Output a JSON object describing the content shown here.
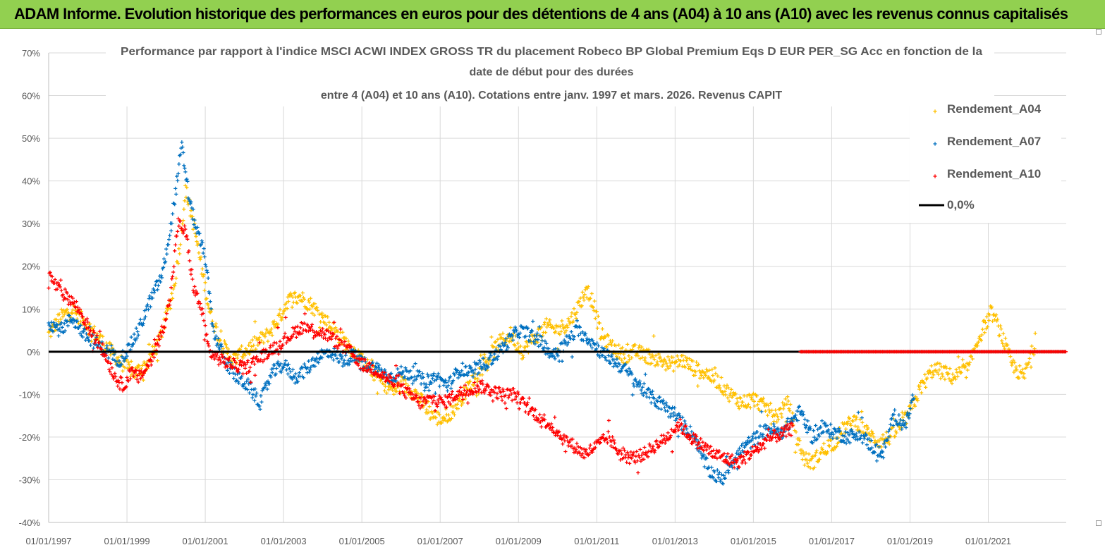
{
  "banner": {
    "title": "ADAM Informe. Evolution historique des performances en euros pour des détentions de 4 ans (A04) à 10 ans (A10) avec les revenus connus capitalisés"
  },
  "chart_data": {
    "type": "scatter",
    "title_lines": [
      "Performance par rapport à l'indice MSCI ACWI INDEX GROSS TR  du placement Robeco BP Global Premium Eqs D EUR PER_SG Acc en fonction de la",
      "date de début pour des durées",
      "entre 4 (A04) et 10 ans (A10). Cotations entre janv. 1997 et mars. 2026. Revenus CAPIT"
    ],
    "xlabel": "",
    "ylabel": "",
    "x_range": [
      1997.0,
      2022.99
    ],
    "ylim": [
      -40,
      70
    ],
    "y_ticks": [
      70,
      60,
      50,
      40,
      30,
      20,
      10,
      0,
      -10,
      -20,
      -30,
      -40
    ],
    "y_tick_labels": [
      "70%",
      "60%",
      "50%",
      "40%",
      "30%",
      "20%",
      "10%",
      "0%",
      "-10%",
      "-20%",
      "-30%",
      "-40%"
    ],
    "x_ticks": [
      1997,
      1999,
      2001,
      2003,
      2005,
      2007,
      2009,
      2011,
      2013,
      2015,
      2017,
      2019,
      2021
    ],
    "x_tick_labels": [
      "01/01/1997",
      "01/01/1999",
      "01/01/2001",
      "01/01/2003",
      "01/01/2005",
      "01/01/2007",
      "01/01/2009",
      "01/01/2011",
      "01/01/2013",
      "01/01/2015",
      "01/01/2017",
      "01/01/2019",
      "01/01/2021"
    ],
    "grid": true,
    "legend_position": "top-right",
    "legend": [
      "Rendement_A04",
      "Rendement_A07",
      "Rendement_A10",
      "0,0%"
    ],
    "series": [
      {
        "name": "Rendement_A04",
        "color": "#ffc000",
        "x": [
          1997.0,
          1997.3,
          1997.6,
          1998.0,
          1998.3,
          1998.6,
          1998.9,
          1999.2,
          1999.5,
          1999.8,
          2000.0,
          2000.2,
          2000.35,
          2000.5,
          2000.7,
          2000.9,
          2001.1,
          2001.4,
          2001.7,
          2002.0,
          2002.3,
          2002.6,
          2002.9,
          2003.1,
          2003.4,
          2003.7,
          2004.0,
          2004.3,
          2004.6,
          2004.9,
          2005.2,
          2005.5,
          2005.8,
          2006.1,
          2006.4,
          2006.7,
          2007.0,
          2007.3,
          2007.6,
          2007.9,
          2008.2,
          2008.5,
          2008.8,
          2009.1,
          2009.4,
          2009.7,
          2010.0,
          2010.3,
          2010.5,
          2010.7,
          2010.9,
          2011.1,
          2011.4,
          2011.7,
          2012.0,
          2012.3,
          2012.6,
          2012.9,
          2013.2,
          2013.5,
          2013.8,
          2014.1,
          2014.4,
          2014.7,
          2015.0,
          2015.3,
          2015.6,
          2015.9,
          2016.1,
          2016.3,
          2016.5,
          2016.7,
          2016.9,
          2017.1,
          2017.3,
          2017.6,
          2017.9,
          2018.2,
          2018.5,
          2018.8,
          2019.0,
          2019.3,
          2019.6,
          2019.9,
          2020.1,
          2020.3,
          2020.5,
          2020.7,
          2020.9,
          2021.1,
          2021.3,
          2021.6,
          2021.9,
          2022.2
        ],
        "y": [
          4,
          8,
          10,
          6,
          3,
          0,
          -3,
          -5,
          -3,
          2,
          8,
          15,
          25,
          38,
          30,
          20,
          10,
          2,
          -2,
          0,
          2,
          4,
          8,
          12,
          13,
          11,
          8,
          5,
          2,
          -1,
          -4,
          -7,
          -9,
          -8,
          -10,
          -14,
          -16,
          -14,
          -10,
          -6,
          -2,
          2,
          4,
          0,
          3,
          6,
          5,
          7,
          10,
          14,
          12,
          4,
          1,
          -1,
          0,
          -1,
          -2,
          -3,
          -2,
          -4,
          -5,
          -7,
          -10,
          -12,
          -11,
          -13,
          -15,
          -12,
          -20,
          -25,
          -26,
          -24,
          -22,
          -21,
          -18,
          -16,
          -19,
          -21,
          -20,
          -17,
          -14,
          -8,
          -4,
          -5,
          -6,
          -5,
          -4,
          2,
          6,
          9,
          5,
          -3,
          -6,
          2
        ],
        "spread": 1.8
      },
      {
        "name": "Rendement_A07",
        "color": "#0070c0",
        "x": [
          1997.0,
          1997.3,
          1997.6,
          1997.9,
          1998.2,
          1998.5,
          1998.8,
          1999.0,
          1999.3,
          1999.6,
          1999.9,
          2000.1,
          2000.25,
          2000.4,
          2000.6,
          2000.8,
          2001.0,
          2001.2,
          2001.5,
          2001.8,
          2002.1,
          2002.4,
          2002.7,
          2003.0,
          2003.3,
          2003.6,
          2003.9,
          2004.2,
          2004.5,
          2004.8,
          2005.1,
          2005.4,
          2005.7,
          2006.0,
          2006.3,
          2006.6,
          2006.9,
          2007.2,
          2007.5,
          2007.8,
          2008.1,
          2008.4,
          2008.7,
          2009.0,
          2009.3,
          2009.6,
          2009.9,
          2010.2,
          2010.5,
          2010.8,
          2011.1,
          2011.4,
          2011.7,
          2012.0,
          2012.3,
          2012.6,
          2012.9,
          2013.1,
          2013.3,
          2013.5,
          2013.7,
          2013.9,
          2014.2,
          2014.5,
          2014.8,
          2015.1,
          2015.4,
          2015.7,
          2015.9,
          2016.2,
          2016.5,
          2016.8,
          2017.1,
          2017.4,
          2017.7,
          2018.0,
          2018.3,
          2018.6,
          2018.9,
          2019.1
        ],
        "y": [
          7,
          5,
          8,
          4,
          2,
          0,
          -2,
          0,
          5,
          12,
          18,
          28,
          38,
          48,
          35,
          28,
          22,
          5,
          -2,
          -6,
          -8,
          -12,
          -5,
          -3,
          -6,
          -4,
          -1,
          0,
          -2,
          -1,
          -3,
          -4,
          -6,
          -5,
          -5,
          -7,
          -6,
          -8,
          -4,
          -5,
          -3,
          -1,
          2,
          5,
          4,
          2,
          -1,
          2,
          5,
          3,
          0,
          -2,
          -4,
          -7,
          -10,
          -12,
          -14,
          -16,
          -18,
          -20,
          -25,
          -28,
          -30,
          -25,
          -22,
          -20,
          -18,
          -19,
          -17,
          -14,
          -20,
          -18,
          -19,
          -20,
          -19,
          -22,
          -24,
          -15,
          -17,
          -10
        ],
        "spread": 1.6
      },
      {
        "name": "Rendement_A10",
        "color": "#ff0000",
        "x": [
          1997.0,
          1997.3,
          1997.6,
          1997.9,
          1998.1,
          1998.3,
          1998.5,
          1998.7,
          1998.9,
          1999.1,
          1999.3,
          1999.5,
          1999.7,
          1999.9,
          2000.1,
          2000.3,
          2000.5,
          2000.7,
          2000.9,
          2001.1,
          2001.4,
          2001.7,
          2002.0,
          2002.3,
          2002.6,
          2002.9,
          2003.2,
          2003.5,
          2003.8,
          2004.1,
          2004.4,
          2004.7,
          2005.0,
          2005.3,
          2005.6,
          2005.9,
          2006.2,
          2006.5,
          2006.8,
          2007.1,
          2007.4,
          2007.7,
          2008.0,
          2008.3,
          2008.6,
          2008.9,
          2009.2,
          2009.5,
          2009.8,
          2010.1,
          2010.4,
          2010.7,
          2011.0,
          2011.3,
          2011.6,
          2011.9,
          2012.2,
          2012.5,
          2012.8,
          2013.1,
          2013.4,
          2013.7,
          2014.0,
          2014.3,
          2014.6,
          2014.9,
          2015.2,
          2015.5,
          2015.8,
          2016.0
        ],
        "y": [
          18,
          14,
          12,
          8,
          4,
          2,
          -2,
          -6,
          -8,
          -5,
          -6,
          -4,
          0,
          5,
          12,
          30,
          28,
          15,
          10,
          0,
          -2,
          -3,
          -4,
          -2,
          0,
          2,
          4,
          6,
          5,
          4,
          2,
          0,
          -3,
          -4,
          -6,
          -8,
          -10,
          -12,
          -11,
          -12,
          -10,
          -9,
          -8,
          -9,
          -10,
          -10,
          -13,
          -15,
          -17,
          -20,
          -22,
          -24,
          -22,
          -20,
          -24,
          -25,
          -24,
          -22,
          -20,
          -17,
          -20,
          -22,
          -24,
          -25,
          -26,
          -24,
          -22,
          -20,
          -19,
          -18
        ],
        "spread": 1.5
      }
    ],
    "zero_series": {
      "name": "Rendement_A10",
      "color": "#ff0000",
      "x_from": 2016.2,
      "x_to": 2022.99,
      "y": 0
    },
    "reference_line": {
      "name": "0,0%",
      "y": 0,
      "color": "#000000"
    }
  }
}
